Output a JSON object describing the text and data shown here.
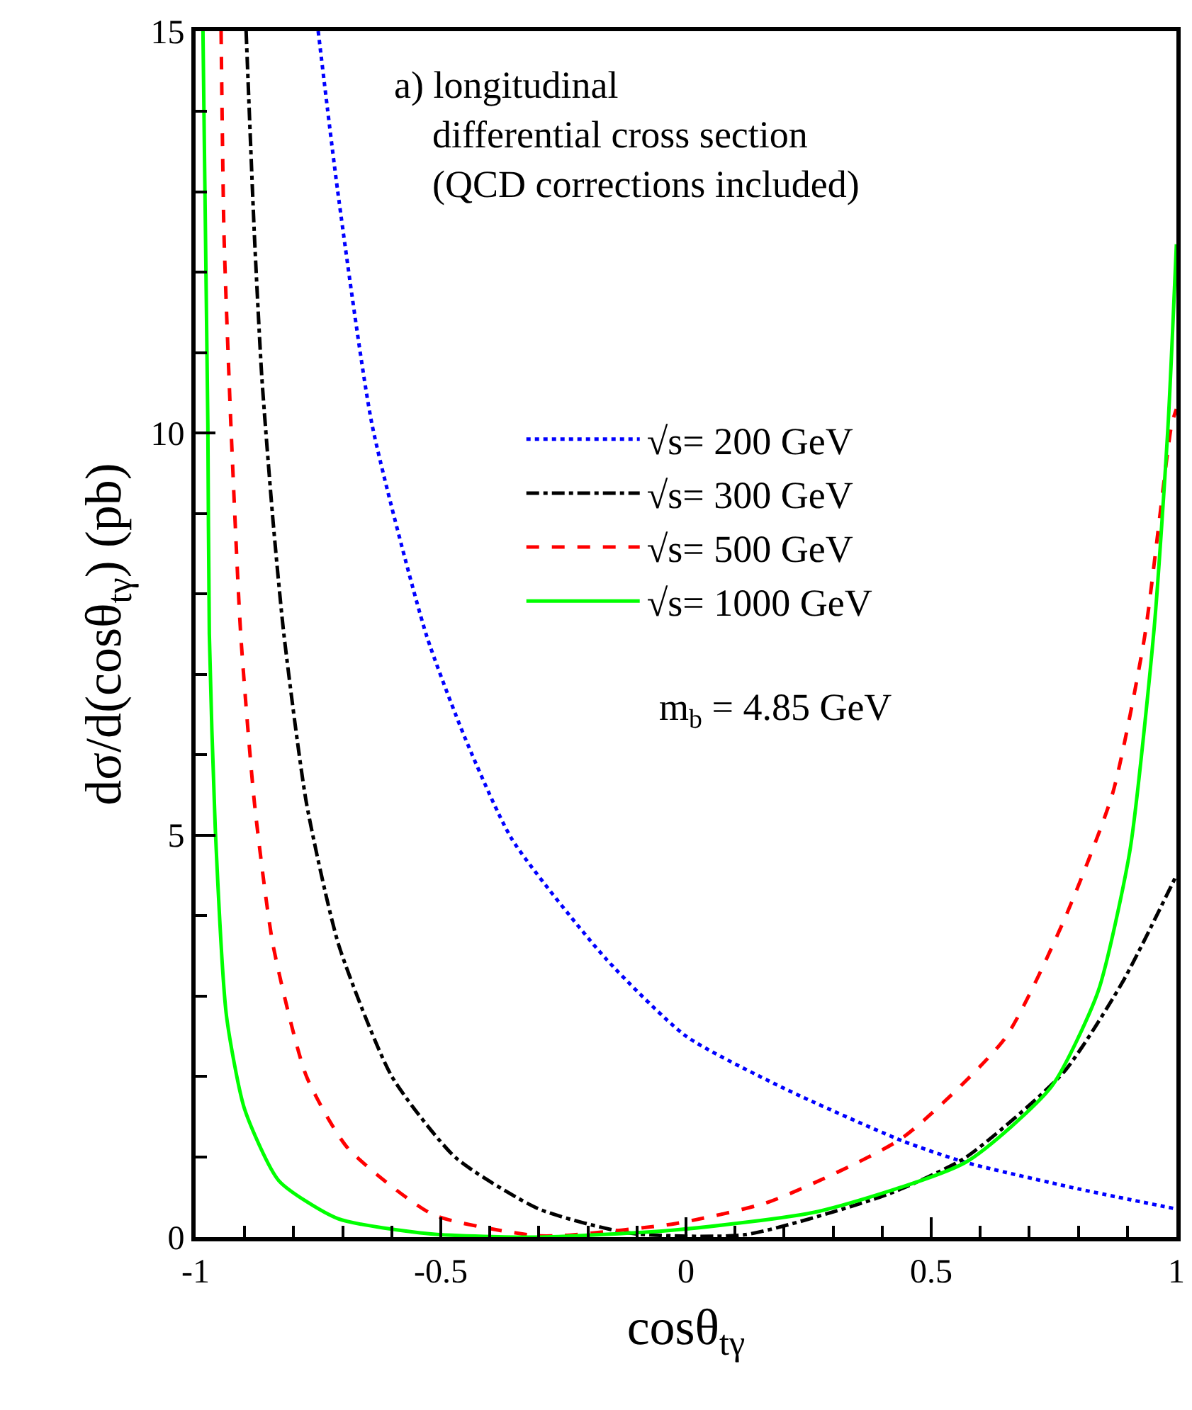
{
  "chart_data": {
    "type": "line",
    "xlabel": "cosθ$_{tγ}$",
    "ylabel": "dσ/d(cosθ$_{tγ}$) (pb)",
    "annotations": [
      "a) longitudinal\n    differential cross section\n    (QCD corrections included)",
      "m$_{b}$ = 4.85 GeV"
    ],
    "xlim": [
      -1,
      1
    ],
    "xticks": [
      -1,
      {
        "value": -0.9,
        "label": null
      },
      {
        "value": -0.8,
        "label": null
      },
      {
        "value": -0.7,
        "label": null
      },
      {
        "value": -0.6,
        "label": null
      },
      -0.5,
      {
        "value": -0.4,
        "label": null
      },
      {
        "value": -0.3,
        "label": null
      },
      {
        "value": -0.2,
        "label": null
      },
      {
        "value": -0.1,
        "label": null
      },
      0,
      {
        "value": 0.1,
        "label": null
      },
      {
        "value": 0.2,
        "label": null
      },
      {
        "value": 0.3,
        "label": null
      },
      {
        "value": 0.4,
        "label": null
      },
      0.5,
      {
        "value": 0.6,
        "label": null
      },
      {
        "value": 0.7,
        "label": null
      },
      {
        "value": 0.8,
        "label": null
      },
      {
        "value": 0.9,
        "label": null
      },
      1
    ],
    "ylim": [
      0,
      15
    ],
    "yticks": [
      0,
      {
        "value": 1,
        "label": null
      },
      {
        "value": 2,
        "label": null
      },
      {
        "value": 3,
        "label": null
      },
      {
        "value": 4,
        "label": null
      },
      5,
      {
        "value": 6,
        "label": null
      },
      {
        "value": 7,
        "label": null
      },
      {
        "value": 8,
        "label": null
      },
      {
        "value": 9,
        "label": null
      },
      10,
      {
        "value": 11,
        "label": null
      },
      {
        "value": 12,
        "label": null
      },
      {
        "value": 13,
        "label": null
      },
      {
        "value": 14,
        "label": null
      },
      15
    ],
    "legend": "right",
    "marker": "none",
    "series": [
      {
        "name": "√s= 200 GeV",
        "color": "#0000ff",
        "line_style": "dotted",
        "x": [
          -0.75,
          -0.71,
          -0.64,
          -0.53,
          -0.45,
          -0.355,
          -0.163,
          0.0,
          0.2,
          0.44,
          0.57,
          0.8,
          1.0
        ],
        "values": [
          15,
          13.0,
          10.1,
          7.5,
          6.2,
          4.95,
          3.46,
          2.5,
          1.85,
          1.2,
          0.93,
          0.6,
          0.35
        ]
      },
      {
        "name": "√s= 300 GeV",
        "color": "#000000",
        "line_style": "dashdot",
        "x": [
          -0.897,
          -0.88,
          -0.865,
          -0.842,
          -0.82,
          -0.774,
          -0.708,
          -0.6,
          -0.47,
          -0.3,
          -0.115,
          0.12,
          0.41,
          0.57,
          0.77,
          0.89,
          1.0
        ],
        "values": [
          15,
          12.45,
          10.7,
          8.9,
          7.5,
          5.4,
          3.63,
          2.0,
          0.99,
          0.35,
          0.05,
          0.03,
          0.53,
          0.99,
          2.05,
          3.17,
          4.5
        ]
      },
      {
        "name": "√s= 500 GeV",
        "color": "#ff0000",
        "line_style": "dashed",
        "x": [
          -0.948,
          -0.942,
          -0.928,
          -0.908,
          -0.88,
          -0.842,
          -0.774,
          -0.69,
          -0.516,
          -0.31,
          -0.25,
          -0.02,
          0.17,
          0.44,
          0.65,
          0.77,
          0.87,
          0.935,
          0.99,
          1.0
        ],
        "values": [
          15,
          12.45,
          10.1,
          7.5,
          5.4,
          3.63,
          2.0,
          1.11,
          0.28,
          0.02,
          0.02,
          0.17,
          0.44,
          1.23,
          2.47,
          3.93,
          5.52,
          7.46,
          10.1,
          10.3
        ]
      },
      {
        "name": "√s= 1000 GeV",
        "color": "#00ff00",
        "line_style": "solid",
        "x": [
          -0.985,
          -0.975,
          -0.972,
          -0.96,
          -0.937,
          -0.9,
          -0.83,
          -0.71,
          -0.52,
          -0.3,
          -0.02,
          0.27,
          0.57,
          0.745,
          0.84,
          0.905,
          0.955,
          0.983,
          1.0
        ],
        "values": [
          15,
          10.1,
          7.5,
          5.1,
          2.75,
          1.59,
          0.7,
          0.23,
          0.04,
          0.0,
          0.09,
          0.32,
          0.93,
          1.87,
          3.05,
          4.8,
          7.6,
          10.1,
          12.35
        ]
      }
    ]
  }
}
